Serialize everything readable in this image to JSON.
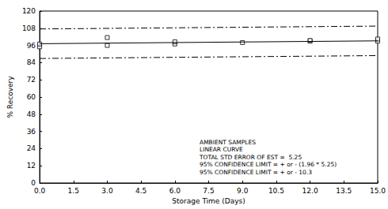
{
  "chart_data": {
    "type": "scatter",
    "x_label": "Storage Time (Days)",
    "y_label": "% Recovery",
    "xlim": [
      0,
      15
    ],
    "xticks": [
      {
        "value": 0,
        "label": "0.0"
      },
      1.5,
      {
        "value": 3,
        "label": "3.0"
      },
      4.5,
      {
        "value": 6,
        "label": "6.0"
      },
      7.5,
      {
        "value": 9,
        "label": "9.0"
      },
      10.5,
      {
        "value": 12,
        "label": "12.0"
      },
      13.5,
      {
        "value": 15,
        "label": "15.0"
      }
    ],
    "ylim": [
      0,
      120
    ],
    "yticks": [
      0,
      12,
      24,
      36,
      48,
      60,
      72,
      84,
      96,
      108,
      120
    ],
    "grid": false,
    "annotations": [
      "AMBIENT SAMPLES",
      "LINEAR CURVE",
      "TOTAL STD ERROR OF EST =  5.25",
      "95% CONFIDENCE LIMIT = + or - (1.96 * 5.25)",
      "95% CONFIDENCE LIMIT = + or - 10.3"
    ],
    "series": [
      {
        "type": "scatter",
        "color": "#000000",
        "marker": "square",
        "x": [
          0,
          0,
          3,
          3,
          6,
          6,
          9,
          12,
          12,
          15,
          15
        ],
        "values": [
          95,
          97,
          101.5,
          96,
          97,
          98.5,
          98,
          99,
          99.5,
          99,
          100.5
        ]
      },
      {
        "type": "line",
        "color": "#000000",
        "line_style": "solid",
        "x": [
          0,
          15
        ],
        "values": [
          97.2,
          99.2
        ]
      },
      {
        "type": "line",
        "color": "#000000",
        "line_style": "dashdot",
        "x": [
          0,
          15
        ],
        "values": [
          107.5,
          109.5
        ]
      },
      {
        "type": "line",
        "color": "#000000",
        "line_style": "dashdot",
        "x": [
          0,
          15
        ],
        "values": [
          86.9,
          88.9
        ]
      }
    ]
  }
}
